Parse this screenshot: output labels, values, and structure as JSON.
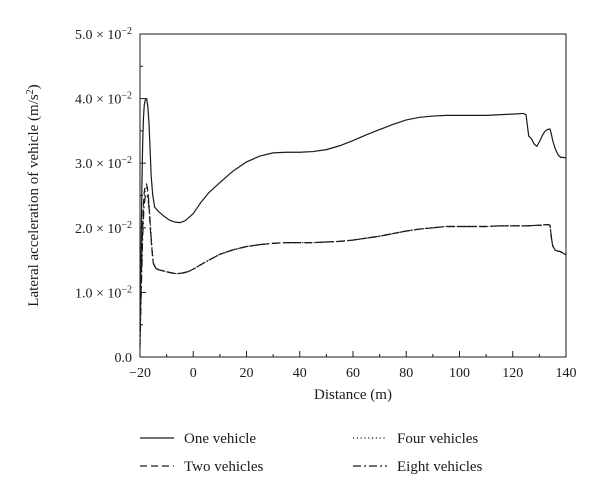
{
  "chart_data": {
    "type": "line",
    "xlabel": "Distance (m)",
    "ylabel_prefix": "Lateral acceleration of vehicle (m/s",
    "ylabel_sup": "2",
    "ylabel_suffix": ")",
    "xlim": [
      -20,
      140
    ],
    "ylim": [
      0,
      0.05
    ],
    "x_ticks": [
      -20,
      0,
      20,
      40,
      60,
      80,
      100,
      120,
      140
    ],
    "y_ticks": [
      {
        "value": 0.0,
        "mantissa": "0.0",
        "exp": ""
      },
      {
        "value": 0.01,
        "mantissa": "1.0",
        "exp": "−2"
      },
      {
        "value": 0.02,
        "mantissa": "2.0",
        "exp": "−2"
      },
      {
        "value": 0.03,
        "mantissa": "3.0",
        "exp": "−2"
      },
      {
        "value": 0.04,
        "mantissa": "4.0",
        "exp": "−2"
      },
      {
        "value": 0.05,
        "mantissa": "5.0",
        "exp": "−2"
      }
    ],
    "legend": [
      {
        "name": "One vehicle",
        "dash": "solid"
      },
      {
        "name": "Four vehicles",
        "dash": "dotted"
      },
      {
        "name": "Two vehicles",
        "dash": "dashed"
      },
      {
        "name": "Eight vehicles",
        "dash": "dashdot"
      }
    ],
    "series": [
      {
        "name": "One vehicle",
        "dash": "solid",
        "x": [
          -20,
          -19.6,
          -19.3,
          -19,
          -18.7,
          -18.4,
          -18,
          -17.5,
          -17,
          -16.6,
          -16.2,
          -15.8,
          -15.2,
          -14.5,
          -13,
          -11,
          -9,
          -7,
          -5,
          -3,
          0,
          3,
          6,
          10,
          15,
          20,
          25,
          30,
          35,
          40,
          45,
          50,
          55,
          60,
          65,
          70,
          75,
          80,
          85,
          90,
          95,
          100,
          105,
          110,
          115,
          120,
          124,
          125,
          125.5,
          126,
          126.5,
          127,
          128,
          129,
          130,
          131,
          132,
          133,
          134,
          134.5,
          135,
          136,
          137,
          138,
          139,
          140
        ],
        "y": [
          0.004,
          0.016,
          0.026,
          0.033,
          0.037,
          0.039,
          0.0398,
          0.04,
          0.0385,
          0.036,
          0.032,
          0.028,
          0.025,
          0.0232,
          0.0225,
          0.0218,
          0.0212,
          0.0209,
          0.0208,
          0.0211,
          0.0222,
          0.024,
          0.0255,
          0.027,
          0.0288,
          0.0302,
          0.0311,
          0.0316,
          0.0317,
          0.0317,
          0.0318,
          0.0321,
          0.0327,
          0.0335,
          0.0344,
          0.0352,
          0.036,
          0.0367,
          0.0371,
          0.0373,
          0.0374,
          0.0374,
          0.0374,
          0.0374,
          0.0375,
          0.0376,
          0.0377,
          0.0375,
          0.0358,
          0.0342,
          0.034,
          0.0338,
          0.033,
          0.0326,
          0.0333,
          0.0342,
          0.0349,
          0.0352,
          0.0353,
          0.0345,
          0.0335,
          0.0322,
          0.0313,
          0.0309,
          0.0309,
          0.0308
        ]
      },
      {
        "name": "Two vehicles",
        "dash": "dashed",
        "x": [
          -20,
          -19.6,
          -19.2,
          -18.8,
          -18.4,
          -18,
          -17.6,
          -17.2,
          -16.8,
          -16.4,
          -16,
          -15.5,
          -15,
          -14,
          -12,
          -10,
          -8,
          -6,
          -4,
          -2,
          0,
          5,
          10,
          15,
          20,
          25,
          30,
          35,
          40,
          45,
          50,
          55,
          60,
          65,
          70,
          75,
          80,
          85,
          90,
          95,
          100,
          105,
          110,
          115,
          120,
          125,
          130,
          132,
          133,
          134,
          134.5,
          135,
          136,
          138,
          140
        ],
        "y": [
          0.003,
          0.011,
          0.018,
          0.023,
          0.0255,
          0.0266,
          0.0268,
          0.0262,
          0.0245,
          0.022,
          0.019,
          0.0165,
          0.0145,
          0.0136,
          0.0134,
          0.0132,
          0.013,
          0.0129,
          0.013,
          0.0132,
          0.0136,
          0.0148,
          0.0159,
          0.0166,
          0.0171,
          0.0174,
          0.0176,
          0.0177,
          0.0177,
          0.0177,
          0.0178,
          0.0179,
          0.0181,
          0.0184,
          0.0187,
          0.0191,
          0.0195,
          0.0198,
          0.02,
          0.0202,
          0.0202,
          0.0202,
          0.0202,
          0.0203,
          0.0203,
          0.0203,
          0.0204,
          0.0204,
          0.0205,
          0.0204,
          0.0185,
          0.0172,
          0.0165,
          0.0163,
          0.0158
        ]
      },
      {
        "name": "Four vehicles",
        "dash": "dotted",
        "x": [
          -20,
          -19.5,
          -19,
          -18.5,
          -18,
          -17.5,
          -17,
          -16.5,
          -16,
          -15.5,
          -15,
          -14,
          -12,
          -10,
          -8,
          -6,
          -4,
          -2,
          0,
          5,
          10,
          15,
          20,
          25,
          30,
          35,
          40,
          45,
          50,
          55,
          60,
          65,
          70,
          75,
          80,
          85,
          90,
          95,
          100,
          105,
          110,
          115,
          120,
          125,
          130,
          133,
          134,
          134.5,
          135,
          136,
          138,
          140
        ],
        "y": [
          0.002,
          0.012,
          0.02,
          0.0243,
          0.0258,
          0.0262,
          0.0255,
          0.0232,
          0.02,
          0.0168,
          0.0146,
          0.0137,
          0.0134,
          0.0132,
          0.013,
          0.0129,
          0.013,
          0.0132,
          0.0136,
          0.0148,
          0.0159,
          0.0166,
          0.0171,
          0.0174,
          0.0176,
          0.0177,
          0.0177,
          0.0177,
          0.0178,
          0.0179,
          0.0181,
          0.0184,
          0.0187,
          0.0191,
          0.0195,
          0.0198,
          0.02,
          0.0202,
          0.0202,
          0.0202,
          0.0202,
          0.0203,
          0.0203,
          0.0203,
          0.0204,
          0.0205,
          0.0204,
          0.0185,
          0.0172,
          0.0165,
          0.0163,
          0.0158
        ]
      },
      {
        "name": "Eight vehicles",
        "dash": "dashdot",
        "x": [
          -20,
          -19.5,
          -19,
          -18.5,
          -18,
          -17.5,
          -17,
          -16.5,
          -16,
          -15.5,
          -15,
          -14,
          -12,
          -10,
          -8,
          -6,
          -4,
          -2,
          0,
          5,
          10,
          15,
          20,
          25,
          30,
          35,
          40,
          45,
          50,
          55,
          60,
          65,
          70,
          75,
          80,
          85,
          90,
          95,
          100,
          105,
          110,
          115,
          120,
          125,
          130,
          133,
          134,
          134.5,
          135,
          136,
          138,
          140
        ],
        "y": [
          0.0015,
          0.0105,
          0.0185,
          0.0232,
          0.0249,
          0.0252,
          0.0246,
          0.0225,
          0.0195,
          0.0166,
          0.0145,
          0.0137,
          0.0134,
          0.0132,
          0.013,
          0.0129,
          0.013,
          0.0132,
          0.0136,
          0.0148,
          0.0159,
          0.0166,
          0.0171,
          0.0174,
          0.0176,
          0.0177,
          0.0177,
          0.0177,
          0.0178,
          0.0179,
          0.0181,
          0.0184,
          0.0187,
          0.0191,
          0.0195,
          0.0198,
          0.02,
          0.0202,
          0.0202,
          0.0202,
          0.0202,
          0.0203,
          0.0203,
          0.0203,
          0.0204,
          0.0205,
          0.0204,
          0.0185,
          0.0172,
          0.0165,
          0.0163,
          0.0158
        ]
      }
    ]
  }
}
